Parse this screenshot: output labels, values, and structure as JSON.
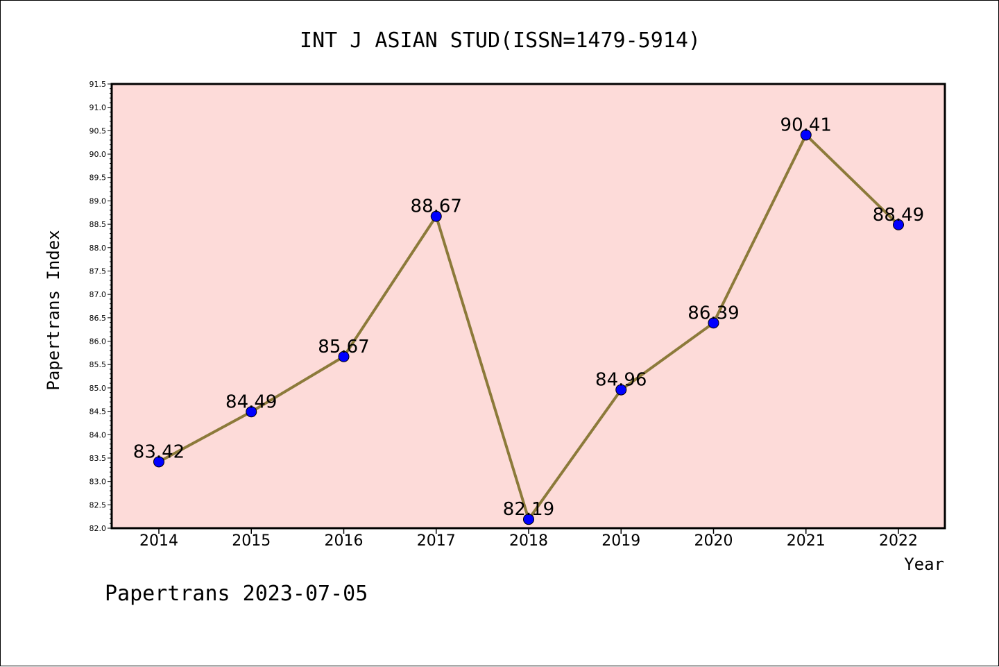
{
  "chart_data": {
    "type": "line",
    "title": "INT J ASIAN STUD(ISSN=1479-5914)",
    "xlabel": "Year",
    "ylabel": "Papertrans Index",
    "categories": [
      "2014",
      "2015",
      "2016",
      "2017",
      "2018",
      "2019",
      "2020",
      "2021",
      "2022"
    ],
    "series": [
      {
        "values": [
          83.42,
          84.49,
          85.67,
          88.67,
          82.19,
          84.96,
          86.39,
          90.41,
          88.49
        ],
        "labels": [
          "83.42",
          "84.49",
          "85.67",
          "88.67",
          "82.19",
          "84.96",
          "86.39",
          "90.41",
          "88.49"
        ]
      }
    ],
    "ylim": [
      82.0,
      91.5
    ],
    "yticks": [
      "82.0",
      "82.5",
      "83.0",
      "83.5",
      "84.0",
      "84.5",
      "85.0",
      "85.5",
      "86.0",
      "86.5",
      "87.0",
      "87.5",
      "88.0",
      "88.5",
      "89.0",
      "89.5",
      "90.0",
      "90.5",
      "91.0",
      "91.5"
    ],
    "grid": false,
    "colors": {
      "plot_background": "#fddbd9",
      "line": "#8c7a3a",
      "marker": "#0000ff"
    }
  },
  "footer": "Papertrans 2023-07-05"
}
